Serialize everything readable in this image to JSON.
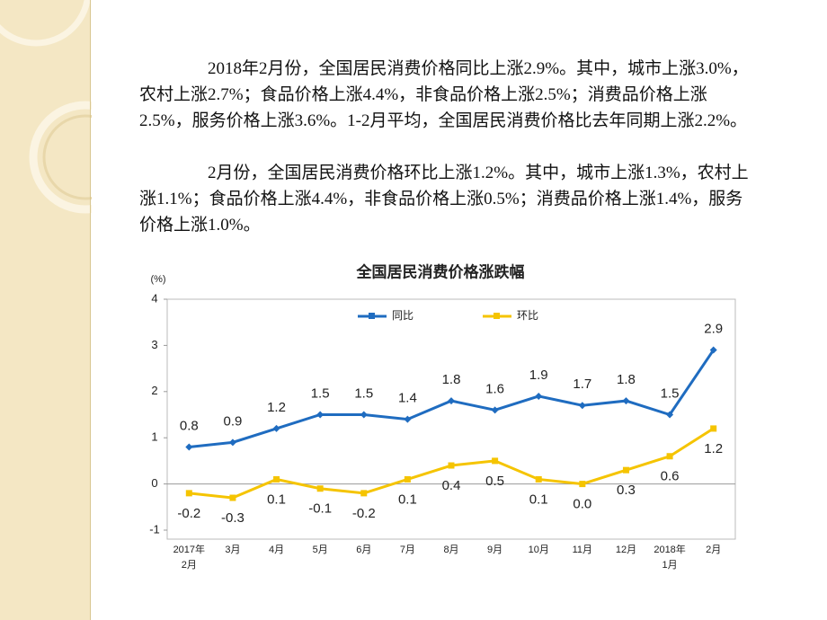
{
  "paragraphs": [
    "2018年2月份，全国居民消费价格同比上涨2.9%。其中，城市上涨3.0%，农村上涨2.7%；食品价格上涨4.4%，非食品价格上涨2.5%；消费品价格上涨2.5%，服务价格上涨3.6%。1-2月平均，全国居民消费价格比去年同期上涨2.2%。",
    "2月份，全国居民消费价格环比上涨1.2%。其中，城市上涨1.3%，农村上涨1.1%；食品价格上涨4.4%，非食品价格上涨0.5%；消费品价格上涨1.4%，服务价格上涨1.0%。"
  ],
  "chart_data": {
    "type": "line",
    "title": "全国居民消费价格涨跌幅",
    "y_label": "(%)",
    "categories": [
      "2017年\n2月",
      "3月",
      "4月",
      "5月",
      "6月",
      "7月",
      "8月",
      "9月",
      "10月",
      "11月",
      "12月",
      "2018年\n1月",
      "2月"
    ],
    "series": [
      {
        "name": "同比",
        "color": "#1f6cc0",
        "values": [
          0.8,
          0.9,
          1.2,
          1.5,
          1.5,
          1.4,
          1.8,
          1.6,
          1.9,
          1.7,
          1.8,
          1.5,
          2.9
        ]
      },
      {
        "name": "环比",
        "color": "#f5c400",
        "values": [
          -0.2,
          -0.3,
          0.1,
          -0.1,
          -0.2,
          0.1,
          0.4,
          0.5,
          0.1,
          0,
          0.3,
          0.6,
          1.2
        ],
        "value_labels": [
          "-0.2",
          "-0.3",
          "0.1",
          "-0.1",
          "-0.2",
          "0.1",
          "0.4",
          "0.5",
          "0.1",
          "0.0",
          "0.3",
          "0.6",
          "1.2"
        ]
      }
    ],
    "ylim": [
      -1,
      4
    ],
    "yticks": [
      -1,
      0,
      1,
      2,
      3,
      4
    ],
    "legend": "top"
  }
}
